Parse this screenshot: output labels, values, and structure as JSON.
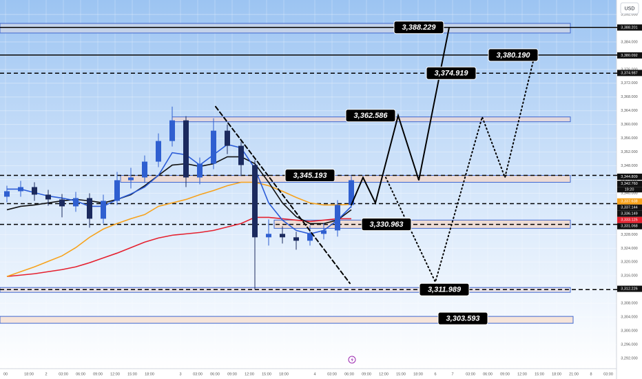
{
  "chart_data": {
    "type": "candlestick",
    "currency": "USD",
    "countdown": "19:20",
    "xlim": [
      -0.5,
      44.25
    ],
    "ylim": [
      3289,
      3396.2
    ],
    "grid": true,
    "up_color": "#2f5fd0",
    "down_color": "#1b2a5e",
    "open": [
      3339.0,
      3340.6,
      3341.8,
      3339.6,
      3338.2,
      3336.2,
      3338.6,
      3332.6,
      3337.8,
      3343.8,
      3344.6,
      3349.2,
      3355.2,
      3361.2,
      3344.6,
      3348.6,
      3358.2,
      3353.8,
      3348.2,
      3327.2,
      3328.2,
      3327.2,
      3326.2,
      3328.2,
      3329.2,
      3336.6
    ],
    "high": [
      3342.2,
      3343.6,
      3343.2,
      3341.0,
      3339.8,
      3340.4,
      3340.0,
      3339.6,
      3346.2,
      3347.4,
      3351.0,
      3357.4,
      3365.2,
      3362.4,
      3350.4,
      3361.8,
      3360.0,
      3355.0,
      3349.6,
      3332.4,
      3330.4,
      3328.8,
      3330.6,
      3331.4,
      3338.0,
      3345.0
    ],
    "low": [
      3337.4,
      3339.0,
      3337.8,
      3336.4,
      3333.0,
      3334.6,
      3330.0,
      3331.2,
      3336.6,
      3341.4,
      3343.0,
      3347.6,
      3353.6,
      3341.8,
      3342.6,
      3347.0,
      3351.4,
      3345.0,
      3312.0,
      3324.8,
      3325.4,
      3323.6,
      3324.8,
      3326.6,
      3327.4,
      3335.8
    ],
    "close": [
      3340.6,
      3341.8,
      3339.6,
      3338.2,
      3336.2,
      3338.6,
      3332.6,
      3337.8,
      3343.8,
      3344.6,
      3349.2,
      3355.2,
      3361.2,
      3344.6,
      3348.6,
      3358.2,
      3353.8,
      3348.2,
      3327.2,
      3328.2,
      3327.2,
      3326.2,
      3328.2,
      3329.2,
      3336.6,
      3343.8
    ],
    "moving_averages": [
      {
        "color": "#e5202e",
        "values": [
          3315.8,
          3316.2,
          3316.6,
          3317.2,
          3317.8,
          3318.6,
          3319.8,
          3321.2,
          3322.6,
          3324.2,
          3325.8,
          3327.0,
          3327.8,
          3328.2,
          3328.6,
          3329.2,
          3330.2,
          3331.2,
          3333.0,
          3333.0,
          3332.6,
          3332.2,
          3331.8,
          3332.2,
          3332.6,
          3332.6
        ]
      },
      {
        "color": "#f7a21b",
        "values": [
          3315.8,
          3317.2,
          3318.6,
          3320.2,
          3321.8,
          3324.2,
          3327.2,
          3329.6,
          3331.2,
          3332.6,
          3333.8,
          3336.2,
          3337.2,
          3338.2,
          3339.6,
          3340.8,
          3342.2,
          3343.2,
          3343.2,
          3342.2,
          3340.6,
          3338.8,
          3337.2,
          3336.6,
          3336.6,
          3336.8
        ]
      },
      {
        "color": "#111111",
        "values": [
          3335.2,
          3336.2,
          3336.6,
          3337.2,
          3337.8,
          3338.2,
          3337.8,
          3337.2,
          3338.2,
          3339.6,
          3342.2,
          3345.2,
          3348.2,
          3348.6,
          3347.8,
          3348.6,
          3350.6,
          3350.6,
          3348.6,
          3343.2,
          3337.2,
          3333.2,
          3331.2,
          3331.2,
          3332.2,
          3335.2
        ]
      },
      {
        "color": "#2a5bd7",
        "values": [
          3341.2,
          3341.2,
          3340.2,
          3339.2,
          3338.6,
          3337.8,
          3336.2,
          3336.2,
          3338.2,
          3339.8,
          3341.8,
          3345.2,
          3351.8,
          3351.2,
          3348.2,
          3351.2,
          3354.2,
          3353.2,
          3347.2,
          3337.2,
          3332.2,
          3329.2,
          3328.2,
          3329.2,
          3332.2,
          3336.2
        ]
      }
    ],
    "zones": [
      {
        "x": [
          -0.5,
          40.9
        ],
        "range": [
          3386.6,
          3389.4
        ],
        "fill": "#c9d3e6"
      },
      {
        "x": [
          12,
          40.9
        ],
        "range": [
          3360.8,
          3362.2
        ],
        "fill": "#e6d6d8"
      },
      {
        "x": [
          8.25,
          40.9
        ],
        "range": [
          3343.2,
          3345.2
        ],
        "fill": "#f0d8cc"
      },
      {
        "x": [
          19.4,
          40.9
        ],
        "range": [
          3329.8,
          3332.2
        ],
        "fill": "#f0d8cc"
      },
      {
        "x": [
          -0.5,
          40.9
        ],
        "range": [
          3311.2,
          3312.6
        ],
        "fill": "#e6dde0"
      },
      {
        "x": [
          -0.5,
          41.1
        ],
        "range": [
          3302.2,
          3304.2
        ],
        "fill": "#f5e0d4"
      }
    ],
    "levels": [
      {
        "value": 3388.229,
        "style": "solid"
      },
      {
        "value": 3380.19,
        "style": "solid"
      },
      {
        "value": 3374.919,
        "style": "dashed"
      },
      {
        "value": 3345.193,
        "style": "dashed"
      },
      {
        "value": 3337.0,
        "style": "dashed"
      },
      {
        "value": 3330.963,
        "style": "dashed"
      },
      {
        "value": 3311.989,
        "style": "dashed"
      }
    ],
    "paths": [
      {
        "style": "dashed",
        "x": [
          15.15,
          24.9
        ],
        "values": [
          3365.2,
          3313.8
        ]
      },
      {
        "style": "solid",
        "x": [
          25,
          25.85,
          26.75,
          28.4,
          29.9,
          31.5,
          32.1
        ],
        "values": [
          3336.6,
          3344.6,
          3337.2,
          3362.6,
          3343.8,
          3376.2,
          3388.2
        ]
      },
      {
        "style": "dotted",
        "x": [
          27.5,
          31.1,
          34.5,
          36.15,
          38.25
        ],
        "values": [
          3344.6,
          3314.2,
          3362.2,
          3344.6,
          3379.2
        ]
      }
    ],
    "annotations": [
      {
        "value": 3388.229,
        "label": "3,388.229",
        "x": 29.9
      },
      {
        "value": 3380.19,
        "label": "3,380.190",
        "x": 36.75
      },
      {
        "value": 3374.919,
        "label": "3,374.919",
        "x": 32.25
      },
      {
        "value": 3362.586,
        "label": "3,362.586",
        "x": 26.4
      },
      {
        "value": 3345.193,
        "label": "3,345.193",
        "x": 22
      },
      {
        "value": 3330.963,
        "label": "3,330.963",
        "x": 27.55
      },
      {
        "value": 3311.989,
        "label": "3,311.989",
        "x": 31.75
      },
      {
        "value": 3303.593,
        "label": "3,303.593",
        "x": 33.1
      }
    ],
    "price_tags": [
      {
        "value": 3388.201,
        "label": "3,388.201",
        "color": "#111111"
      },
      {
        "value": 3380.092,
        "label": "3,380.092",
        "color": "#111111"
      },
      {
        "value": 3374.987,
        "label": "3,374.987",
        "color": "#111111"
      },
      {
        "value": 3344.809,
        "label": "3,344.809",
        "color": "#111111"
      },
      {
        "value": 3342.76,
        "label": "3,342.760",
        "color": "#111111"
      },
      {
        "value": 3337.638,
        "label": "3,337.638",
        "color": "#f7a21b"
      },
      {
        "value": 3337.144,
        "label": "3,337.144",
        "color": "#111111"
      },
      {
        "value": 3336.149,
        "label": "3,336.149",
        "color": "#111111"
      },
      {
        "value": 3333.125,
        "label": "3,333.125",
        "color": "#e5202e"
      },
      {
        "value": 3331.068,
        "label": "3,331.068",
        "color": "#111111"
      },
      {
        "value": 3312.226,
        "label": "3,312.226",
        "color": "#111111"
      }
    ],
    "yticks": [
      {
        "value": 3392,
        "label": "3,392.000"
      },
      {
        "value": 3388,
        "label": "3,388.000"
      },
      {
        "value": 3384,
        "label": "3,384.000"
      },
      {
        "value": 3380,
        "label": "3,380.000"
      },
      {
        "value": 3376,
        "label": "3,376.000"
      },
      {
        "value": 3372,
        "label": "3,372.000"
      },
      {
        "value": 3368,
        "label": "3,368.000"
      },
      {
        "value": 3364,
        "label": "3,364.000"
      },
      {
        "value": 3360,
        "label": "3,360.000"
      },
      {
        "value": 3356,
        "label": "3,356.000"
      },
      {
        "value": 3352,
        "label": "3,352.000"
      },
      {
        "value": 3348,
        "label": "3,348.000"
      },
      {
        "value": 3344,
        "label": "3,344.000"
      },
      {
        "value": 3340,
        "label": "3,340.000"
      },
      {
        "value": 3336,
        "label": "3,336.000"
      },
      {
        "value": 3332,
        "label": "3,332.000"
      },
      {
        "value": 3328,
        "label": "3,328.000"
      },
      {
        "value": 3324,
        "label": "3,324.000"
      },
      {
        "value": 3320,
        "label": "3,320.000"
      },
      {
        "value": 3316,
        "label": "3,316.000"
      },
      {
        "value": 3312,
        "label": "3,312.000"
      },
      {
        "value": 3308,
        "label": "3,308.000"
      },
      {
        "value": 3304,
        "label": "3,304.000"
      },
      {
        "value": 3300,
        "label": "3,300.000"
      },
      {
        "value": 3296,
        "label": "3,296.000"
      },
      {
        "value": 3292,
        "label": "3,292.000"
      }
    ],
    "xticks": [
      {
        "value": -0.1,
        "label": "00"
      },
      {
        "value": 1.6,
        "label": "18:00"
      },
      {
        "value": 2.85,
        "label": "2"
      },
      {
        "value": 4.1,
        "label": "03:00"
      },
      {
        "value": 5.35,
        "label": "06:00"
      },
      {
        "value": 6.6,
        "label": "09:00"
      },
      {
        "value": 7.85,
        "label": "12:00"
      },
      {
        "value": 9.1,
        "label": "15:00"
      },
      {
        "value": 10.35,
        "label": "18:00"
      },
      {
        "value": 12.6,
        "label": "3"
      },
      {
        "value": 13.85,
        "label": "03:00"
      },
      {
        "value": 15.1,
        "label": "06:00"
      },
      {
        "value": 16.35,
        "label": "09:00"
      },
      {
        "value": 17.6,
        "label": "12:00"
      },
      {
        "value": 18.85,
        "label": "15:00"
      },
      {
        "value": 20.1,
        "label": "18:00"
      },
      {
        "value": 22.35,
        "label": "4"
      },
      {
        "value": 23.6,
        "label": "03:00"
      },
      {
        "value": 24.85,
        "label": "06:00"
      },
      {
        "value": 26.1,
        "label": "09:00"
      },
      {
        "value": 27.35,
        "label": "12:00"
      },
      {
        "value": 28.6,
        "label": "15:00"
      },
      {
        "value": 29.85,
        "label": "18:00"
      },
      {
        "value": 31.1,
        "label": "6"
      },
      {
        "value": 32.35,
        "label": "7"
      },
      {
        "value": 33.65,
        "label": "03:00"
      },
      {
        "value": 34.9,
        "label": "06:00"
      },
      {
        "value": 36.15,
        "label": "09:00"
      },
      {
        "value": 37.4,
        "label": "12:00"
      },
      {
        "value": 38.65,
        "label": "15:00"
      },
      {
        "value": 39.9,
        "label": "18:00"
      },
      {
        "value": 41.15,
        "label": "21:00"
      },
      {
        "value": 42.4,
        "label": "8"
      },
      {
        "value": 43.65,
        "label": "03:00"
      }
    ]
  }
}
